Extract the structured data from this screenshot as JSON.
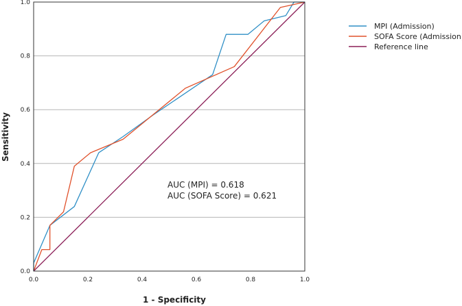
{
  "chart_data": {
    "type": "line",
    "xlabel": "1 - Specificity",
    "ylabel": "Sensitivity",
    "xlim": [
      0,
      1
    ],
    "ylim": [
      0,
      1
    ],
    "x_ticks": [
      "0.0",
      "0.2",
      "0.4",
      "0.6",
      "0.8",
      "1.0"
    ],
    "y_ticks": [
      "0.0",
      "0.2",
      "0.4",
      "0.6",
      "0.8",
      "1.0"
    ],
    "grid": "horizontal",
    "legend_position": "top-right",
    "series": [
      {
        "name": "MPI (Admission)",
        "color": "#2f8fc6",
        "x": [
          0.0,
          0.0,
          0.06,
          0.15,
          0.24,
          0.33,
          0.44,
          0.66,
          0.71,
          0.79,
          0.85,
          0.93,
          0.96,
          1.0
        ],
        "y": [
          0.0,
          0.03,
          0.17,
          0.24,
          0.44,
          0.5,
          0.58,
          0.73,
          0.88,
          0.88,
          0.93,
          0.95,
          1.0,
          1.0
        ]
      },
      {
        "name": "SOFA Score (Admission)",
        "color": "#e0502a",
        "x": [
          0.0,
          0.03,
          0.06,
          0.06,
          0.11,
          0.15,
          0.21,
          0.33,
          0.56,
          0.74,
          0.91,
          1.0
        ],
        "y": [
          0.0,
          0.08,
          0.08,
          0.17,
          0.22,
          0.39,
          0.44,
          0.49,
          0.68,
          0.76,
          0.98,
          1.0
        ]
      },
      {
        "name": "Reference line",
        "color": "#8b1e57",
        "x": [
          0,
          1
        ],
        "y": [
          0,
          1
        ]
      }
    ],
    "annotations": [
      "AUC (MPI) = 0.618",
      "AUC (SOFA Score) = 0.621"
    ]
  }
}
